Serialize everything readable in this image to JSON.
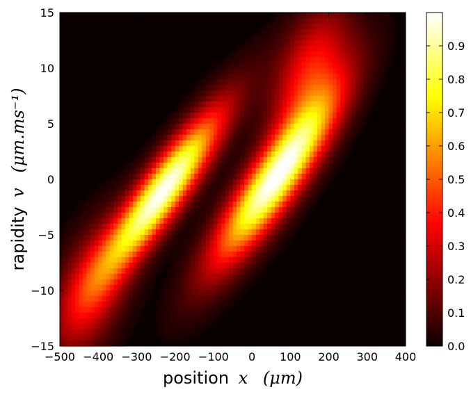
{
  "chart_data": {
    "type": "heatmap",
    "title": "",
    "xlabel": {
      "text": "position",
      "math": "x",
      "unit": "(μm)"
    },
    "ylabel": {
      "text": "rapidity",
      "math": "v",
      "unit": "(μm.ms⁻¹)"
    },
    "xlim": [
      -500,
      400
    ],
    "ylim": [
      -15,
      15
    ],
    "xticks": [
      -500,
      -400,
      -300,
      -200,
      -100,
      0,
      100,
      200,
      300,
      400
    ],
    "yticks": [
      -15,
      -10,
      -5,
      0,
      5,
      10,
      15
    ],
    "xtick_labels": [
      "−500",
      "−400",
      "−300",
      "−200",
      "−100",
      "0",
      "100",
      "200",
      "300",
      "400"
    ],
    "ytick_labels": [
      "−15",
      "−10",
      "−5",
      "0",
      "5",
      "10",
      "15"
    ],
    "colormap": "hot",
    "colorbar": {
      "range": [
        0.0,
        1.0
      ],
      "ticks": [
        0.0,
        0.1,
        0.2,
        0.3,
        0.4,
        0.5,
        0.6,
        0.7,
        0.8,
        0.9
      ],
      "tick_labels": [
        "0.0",
        "0.1",
        "0.2",
        "0.3",
        "0.4",
        "0.5",
        "0.6",
        "0.7",
        "0.8",
        "0.9"
      ]
    },
    "blobs": [
      {
        "x": -230,
        "y": -1.0,
        "slope_v_per_x": 0.042,
        "spread_along": 1.05,
        "spread_across": 0.55,
        "peak": 1.0
      },
      {
        "x": 60,
        "y": 0.0,
        "slope_v_per_x": 0.042,
        "spread_along": 1.1,
        "spread_across": 0.62,
        "peak": 1.0
      },
      {
        "x": -420,
        "y": -10.0,
        "slope_v_per_x": 0.03,
        "spread_along": 0.7,
        "spread_across": 0.9,
        "peak": 0.35
      },
      {
        "x": 150,
        "y": 9.5,
        "slope_v_per_x": 0.03,
        "spread_along": 0.7,
        "spread_across": 0.9,
        "peak": 0.4
      }
    ]
  }
}
